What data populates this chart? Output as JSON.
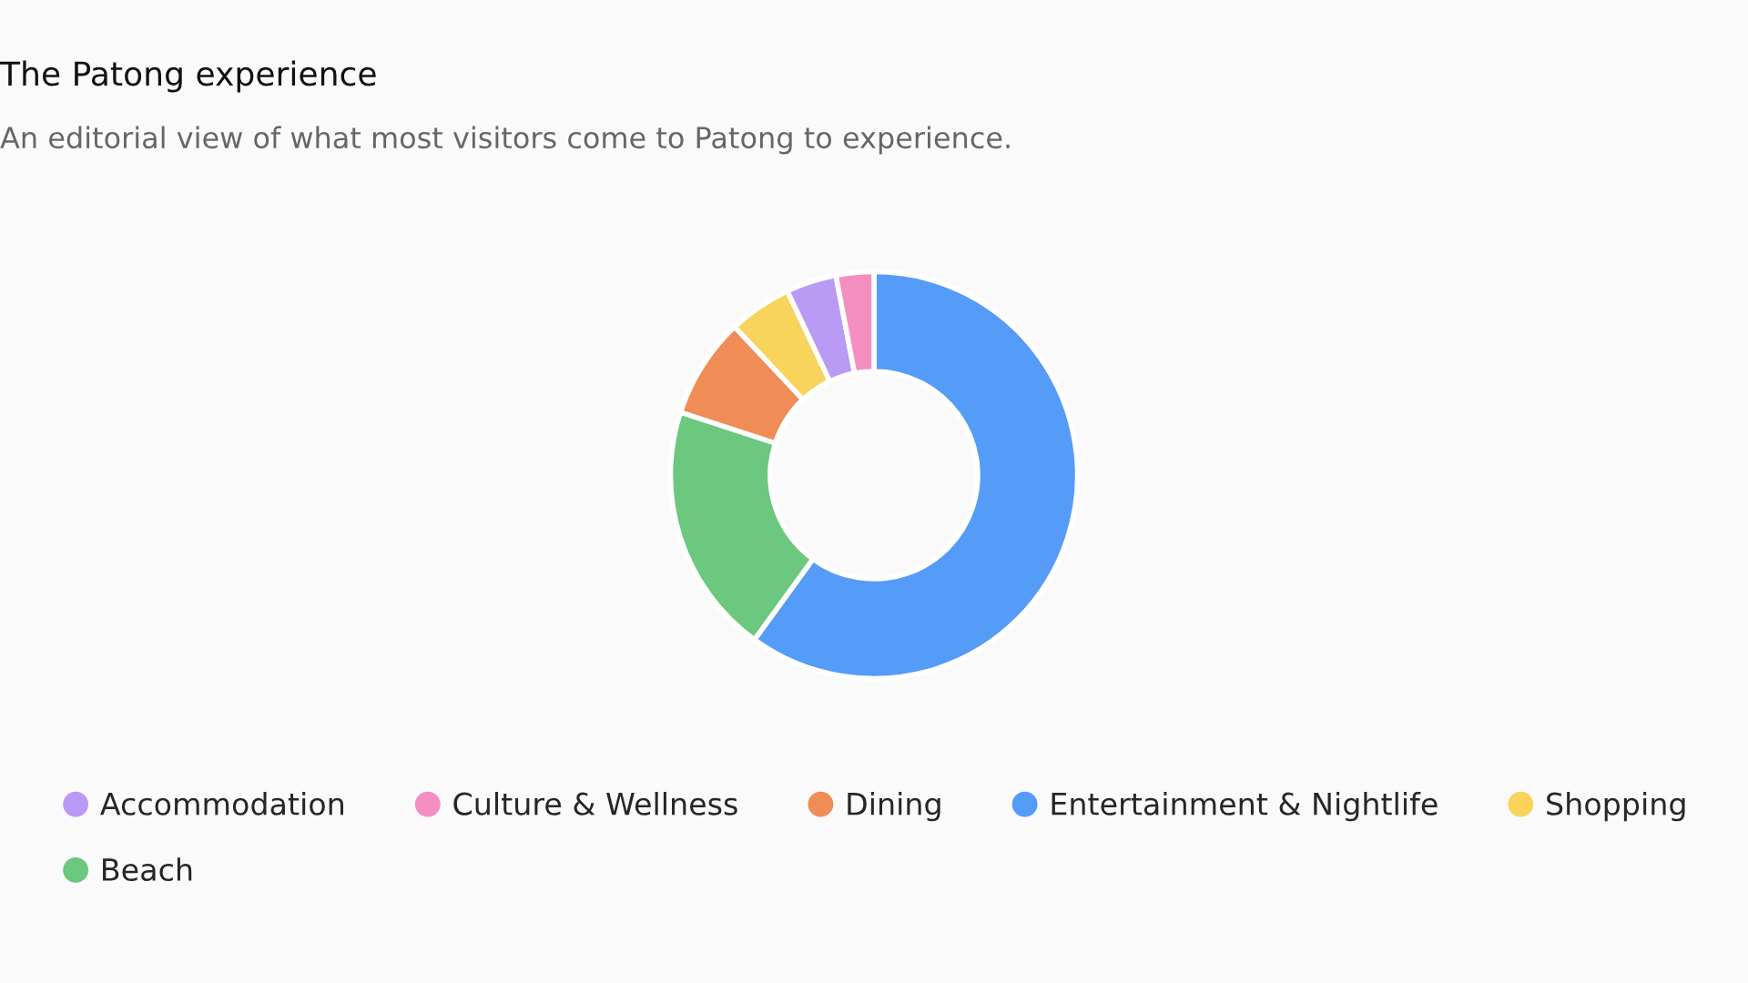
{
  "chart_data": {
    "type": "donut",
    "title": "The Patong experience",
    "subtitle": "An editorial view of what most visitors come to Patong to experience.",
    "categories": [
      "Entertainment & Nightlife",
      "Beach",
      "Dining",
      "Shopping",
      "Accommodation",
      "Culture & Wellness"
    ],
    "values": [
      60,
      20,
      8,
      5,
      4,
      3
    ],
    "colors": [
      "#559bf8",
      "#6cc77f",
      "#f08c56",
      "#f8d45c",
      "#b99af4",
      "#f48fc0"
    ],
    "legend": "bottom"
  }
}
